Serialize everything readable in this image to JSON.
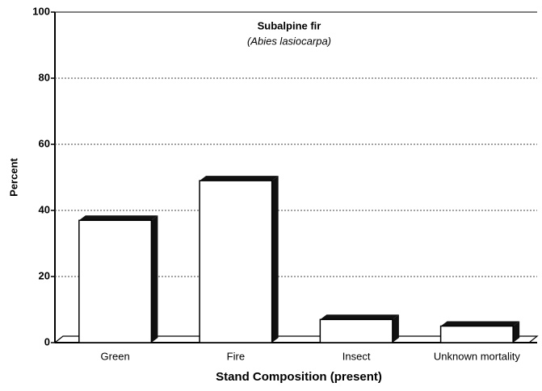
{
  "chart_data": {
    "type": "bar",
    "title": "Subalpine fir",
    "subtitle": "(Abies lasiocarpa)",
    "x_label": "Stand Composition (present)",
    "y_label": "Percent",
    "categories": [
      "Green",
      "Fire",
      "Insect",
      "Unknown mortality"
    ],
    "values": [
      37,
      49,
      7,
      5
    ],
    "color": "#ffffff",
    "ylim": [
      0,
      100
    ],
    "yticks": [
      0,
      20,
      40,
      60,
      80,
      100
    ],
    "grid": true
  }
}
